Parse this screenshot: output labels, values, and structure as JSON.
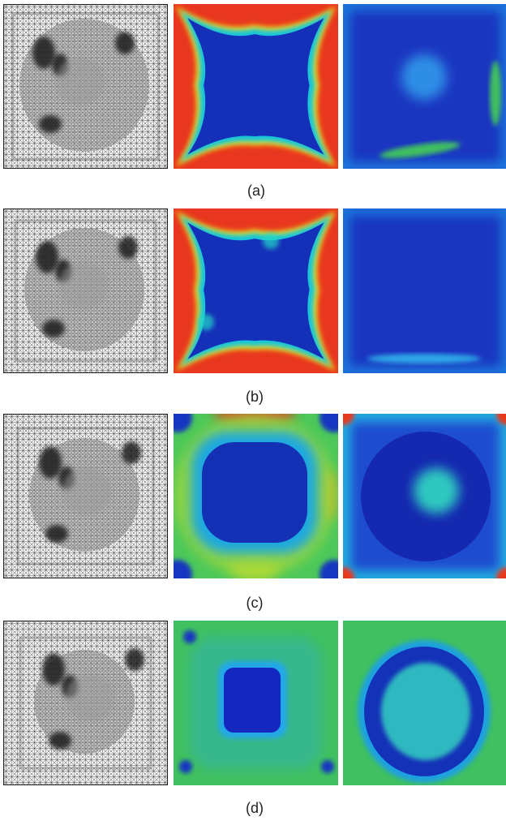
{
  "figure": {
    "rows": [
      {
        "label": "(a)"
      },
      {
        "label": "(b)"
      },
      {
        "label": "(c)"
      },
      {
        "label": "(d)"
      }
    ]
  }
}
